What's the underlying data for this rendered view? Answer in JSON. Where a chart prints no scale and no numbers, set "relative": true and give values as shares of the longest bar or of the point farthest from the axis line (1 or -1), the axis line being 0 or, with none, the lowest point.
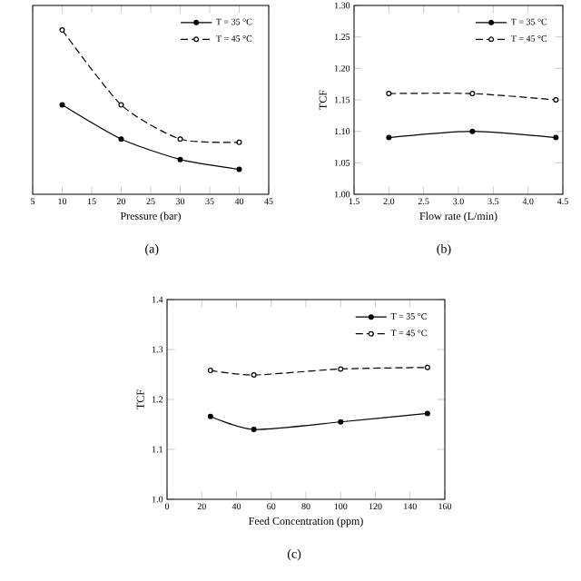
{
  "chart_data": [
    {
      "type": "line",
      "relative": true,
      "xlabel": "Pressure (bar)",
      "x": [
        10,
        20,
        30,
        40
      ],
      "xlim": [
        5,
        45
      ],
      "xticks": [
        5,
        10,
        15,
        20,
        25,
        30,
        35,
        40,
        45
      ],
      "tick_labels": "x",
      "legend": "top right",
      "marker": "circle",
      "annotations": [
        "(a)"
      ],
      "series": [
        {
          "name": "T = 35 °C",
          "color": "#000000",
          "line_style": "solid",
          "values": [
            0.544,
            0.336,
            0.212,
            0.152
          ]
        },
        {
          "name": "T = 45 °C",
          "color": "#000000",
          "line_style": "dashed",
          "values": [
            1,
            0.544,
            0.336,
            0.316
          ]
        }
      ]
    },
    {
      "type": "line",
      "xlabel": "Flow rate (L/min)",
      "ylabel": "TCF",
      "x": [
        2.0,
        3.2,
        4.4
      ],
      "xlim": [
        1.5,
        4.5
      ],
      "xticks": [
        1.5,
        {
          "value": 2,
          "label": "2.0"
        },
        2.5,
        {
          "value": 3,
          "label": "3.0"
        },
        3.5,
        {
          "value": 4,
          "label": "4.0"
        },
        4.5
      ],
      "ylim": [
        1.0,
        1.3
      ],
      "yticks": [
        {
          "value": 1.0,
          "label": "1.00"
        },
        1.05,
        {
          "value": 1.1,
          "label": "1.10"
        },
        1.15,
        {
          "value": 1.2,
          "label": "1.20"
        },
        1.25,
        {
          "value": 1.3,
          "label": "1.30"
        }
      ],
      "legend": "top right",
      "marker": "circle",
      "annotations": [
        "(b)"
      ],
      "series": [
        {
          "name": "T = 35 °C",
          "color": "#000000",
          "line_style": "solid",
          "values": [
            1.09,
            1.1,
            1.09
          ]
        },
        {
          "name": "T = 45 °C",
          "color": "#000000",
          "line_style": "dashed",
          "values": [
            1.16,
            1.16,
            1.15
          ]
        }
      ]
    },
    {
      "type": "line",
      "xlabel": "Feed Concentration (ppm)",
      "ylabel": "TCF",
      "x": [
        25,
        50,
        100,
        150
      ],
      "xlim": [
        0,
        160
      ],
      "xticks": [
        0,
        20,
        40,
        60,
        80,
        100,
        120,
        140,
        160
      ],
      "ylim": [
        1.0,
        1.4
      ],
      "yticks": [
        {
          "value": 1.0,
          "label": "1.0"
        },
        1.1,
        1.2,
        1.3,
        1.4
      ],
      "legend": "top right",
      "marker": "circle",
      "annotations": [
        "(c)"
      ],
      "series": [
        {
          "name": "T = 35 °C",
          "color": "#000000",
          "line_style": "solid",
          "values": [
            1.166,
            1.14,
            1.155,
            1.172
          ]
        },
        {
          "name": "T = 45 °C",
          "color": "#000000",
          "line_style": "dashed",
          "values": [
            1.258,
            1.249,
            1.261,
            1.264
          ]
        }
      ]
    }
  ]
}
